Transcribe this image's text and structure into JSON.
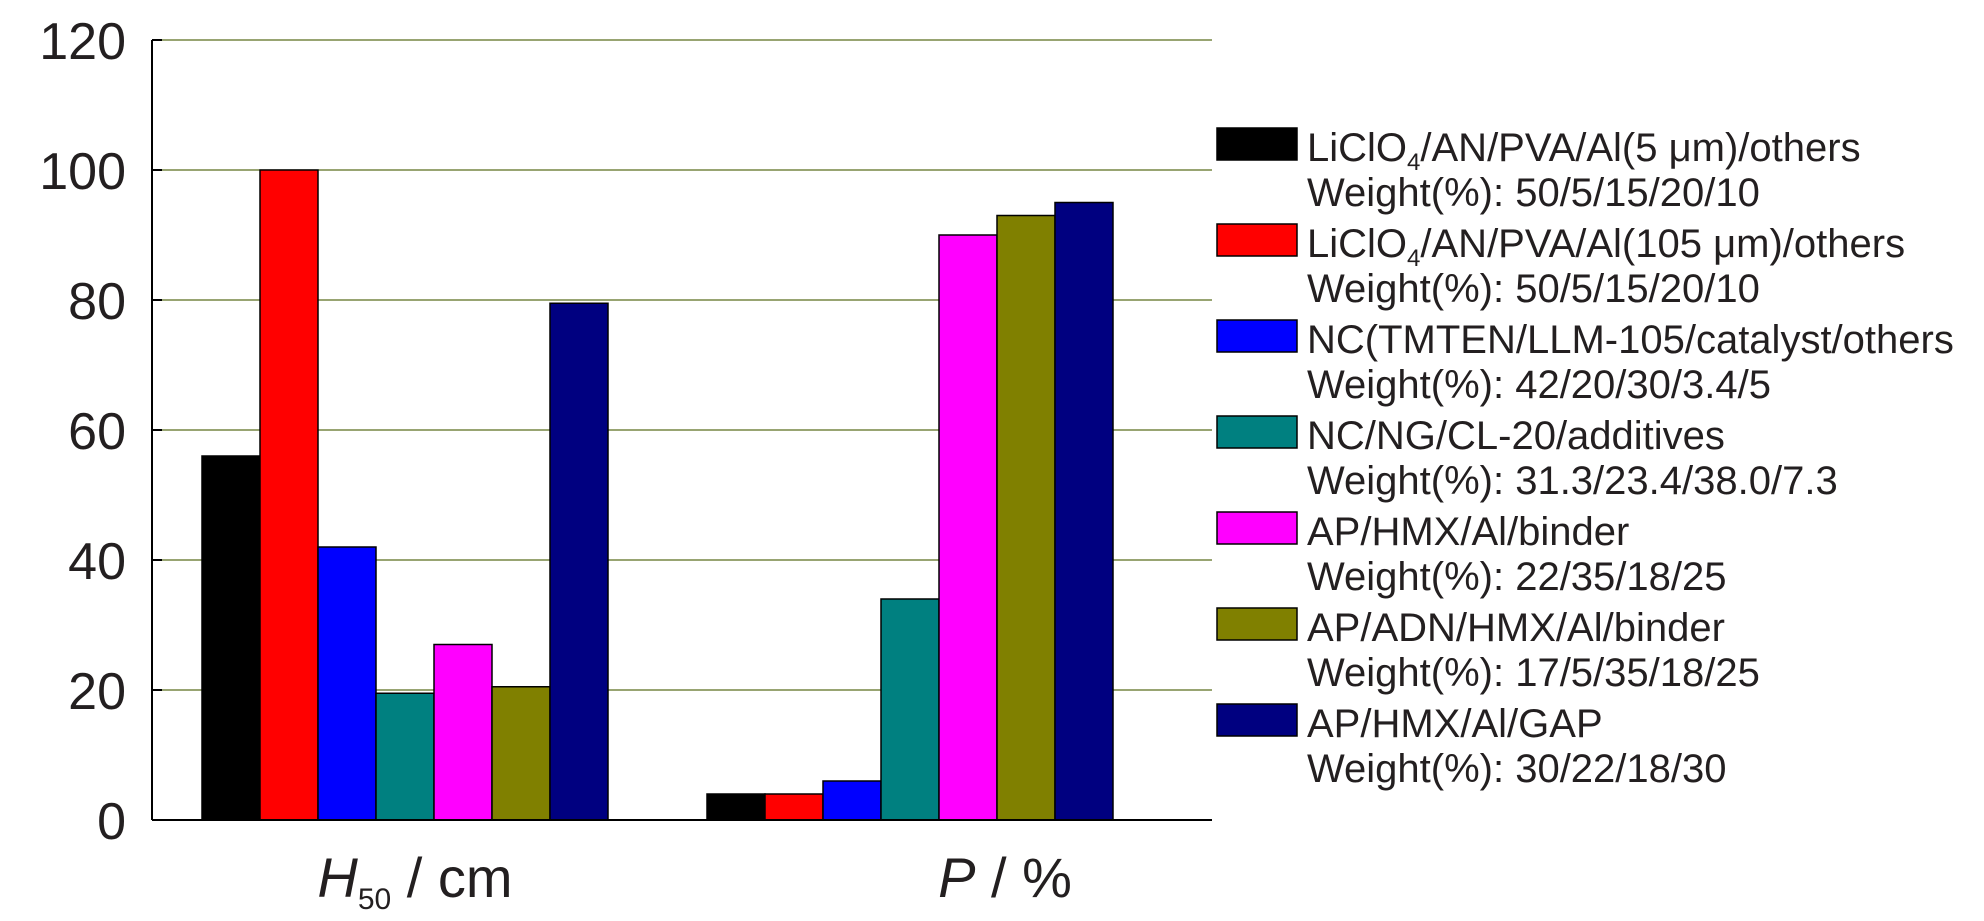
{
  "chart_data": {
    "type": "bar",
    "title": "",
    "categories": [
      {
        "main": "H",
        "sub": "50",
        "rest": " / cm"
      },
      {
        "main": "P",
        "sub": "",
        "rest": " / %"
      }
    ],
    "ylim": [
      0,
      120
    ],
    "yticks": [
      0,
      20,
      40,
      60,
      80,
      100,
      120
    ],
    "grid": true,
    "legend_position": "right",
    "series": [
      {
        "color": "#000000",
        "values": [
          56,
          4
        ],
        "legend": {
          "name_pre": "LiClO",
          "name_sub": "4",
          "name_post": "/AN/PVA/Al(5 μm)/others",
          "weight": "Weight(%): 50/5/15/20/10"
        }
      },
      {
        "color": "#ff0000",
        "values": [
          100,
          4
        ],
        "legend": {
          "name_pre": "LiClO",
          "name_sub": "4",
          "name_post": "/AN/PVA/Al(105 μm)/others",
          "weight": "Weight(%): 50/5/15/20/10"
        }
      },
      {
        "color": "#0000ff",
        "values": [
          42,
          6
        ],
        "legend": {
          "name_pre": "NC(TMTEN/LLM-105/catalyst/others",
          "name_sub": "",
          "name_post": "",
          "weight": "Weight(%): 42/20/30/3.4/5"
        }
      },
      {
        "color": "#008080",
        "values": [
          19.5,
          34
        ],
        "legend": {
          "name_pre": "NC/NG/CL-20/additives",
          "name_sub": "",
          "name_post": "",
          "weight": "Weight(%): 31.3/23.4/38.0/7.3"
        }
      },
      {
        "color": "#ff00ff",
        "values": [
          27,
          90
        ],
        "legend": {
          "name_pre": "AP/HMX/Al/binder",
          "name_sub": "",
          "name_post": "",
          "weight": "Weight(%): 22/35/18/25"
        }
      },
      {
        "color": "#808000",
        "values": [
          20.5,
          93
        ],
        "legend": {
          "name_pre": "AP/ADN/HMX/Al/binder",
          "name_sub": "",
          "name_post": "",
          "weight": "Weight(%): 17/5/35/18/25"
        }
      },
      {
        "color": "#000080",
        "values": [
          79.5,
          95
        ],
        "legend": {
          "name_pre": "AP/HMX/Al/GAP",
          "name_sub": "",
          "name_post": "",
          "weight": "Weight(%): 30/22/18/30"
        }
      }
    ],
    "colors": {
      "grid": "#5a6e1e",
      "axis": "#000000",
      "text": "#231f20"
    }
  }
}
